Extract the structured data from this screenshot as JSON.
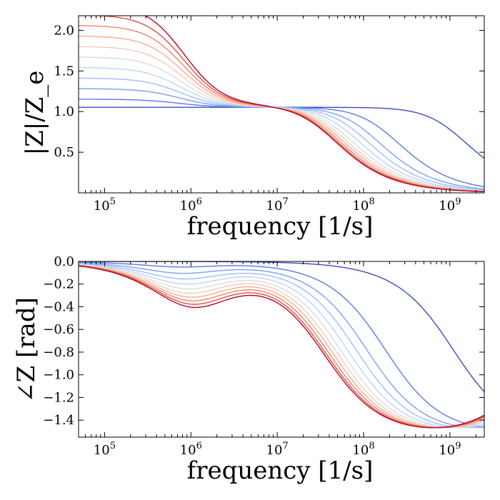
{
  "chart_data": [
    {
      "type": "line",
      "xscale": "log",
      "xlim": [
        50000,
        2500000000
      ],
      "ylim": [
        0.0,
        2.18
      ],
      "xlabel": "frequency [1/s]",
      "ylabel": "|Z|/Z_e",
      "xtick_labels": [
        {
          "x": 100000,
          "base": "10",
          "exp": "5"
        },
        {
          "x": 1000000,
          "base": "10",
          "exp": "6"
        },
        {
          "x": 10000000,
          "base": "10",
          "exp": "7"
        },
        {
          "x": 100000000,
          "base": "10",
          "exp": "8"
        },
        {
          "x": 1000000000,
          "base": "10",
          "exp": "9"
        }
      ],
      "yticks": [
        0.5,
        1.0,
        1.5,
        2.0
      ],
      "ytick_labels": [
        "0.5",
        "1.0",
        "1.5",
        "2.0"
      ],
      "colors": [
        "#3b4cc0",
        "#5b7ae5",
        "#7b9ff9",
        "#9ebeff",
        "#c0d4f5",
        "#dddcdc",
        "#f2cbb7",
        "#f7ac8e",
        "#ee8468",
        "#d65244",
        "#b40426"
      ],
      "series_model": {
        "r0": [
          1.02,
          1.15,
          1.28,
          1.41,
          1.54,
          1.67,
          1.8,
          1.93,
          2.06,
          2.19,
          2.32
        ],
        "fc": [
          1100000000,
          180000000,
          110000000,
          83000000,
          66000000,
          55000000,
          48000000,
          43000000,
          39000000,
          36000000,
          34000000
        ],
        "plateau": 1.05,
        "fp": 700000,
        "zinf": 0.003
      }
    },
    {
      "type": "line",
      "xscale": "log",
      "xlim": [
        50000,
        2500000000
      ],
      "ylim": [
        -1.55,
        0.0
      ],
      "xlabel": "frequency [1/s]",
      "ylabel": "∠Z [rad]",
      "xtick_labels": [
        {
          "x": 100000,
          "base": "10",
          "exp": "5"
        },
        {
          "x": 1000000,
          "base": "10",
          "exp": "6"
        },
        {
          "x": 10000000,
          "base": "10",
          "exp": "7"
        },
        {
          "x": 100000000,
          "base": "10",
          "exp": "8"
        },
        {
          "x": 1000000000,
          "base": "10",
          "exp": "9"
        }
      ],
      "yticks": [
        0.0,
        -0.2,
        -0.4,
        -0.6,
        -0.8,
        -1.0,
        -1.2,
        -1.4
      ],
      "ytick_labels": [
        "0.0",
        "−0.2",
        "−0.4",
        "−0.6",
        "−0.8",
        "−1.0",
        "−1.2",
        "−1.4"
      ],
      "colors": [
        "#3b4cc0",
        "#5b7ae5",
        "#7b9ff9",
        "#9ebeff",
        "#c0d4f5",
        "#dddcdc",
        "#f2cbb7",
        "#f7ac8e",
        "#ee8468",
        "#d65244",
        "#b40426"
      ]
    }
  ]
}
